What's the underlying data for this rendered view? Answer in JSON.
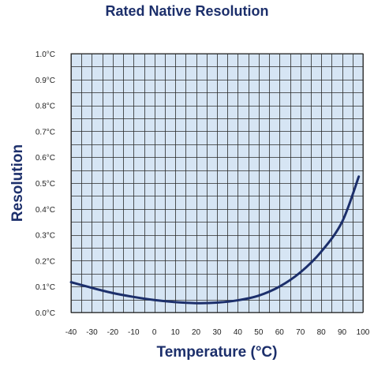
{
  "chart_data": {
    "type": "line",
    "title": "Rated Native Resolution",
    "xlabel": "Temperature (°C)",
    "ylabel": "Resolution",
    "xlim": [
      -40,
      100
    ],
    "ylim": [
      0.0,
      1.0
    ],
    "x_ticks": [
      "-40",
      "-30",
      "-20",
      "-10",
      "0",
      "10",
      "20",
      "30",
      "40",
      "50",
      "60",
      "70",
      "80",
      "90",
      "100"
    ],
    "y_ticks": [
      "0.0°C",
      "0.1°C",
      "0.2°C",
      "0.3°C",
      "0.4°C",
      "0.5°C",
      "0.6°C",
      "0.7°C",
      "0.8°C",
      "0.9°C",
      "1.0°C"
    ],
    "grid": true,
    "colors": {
      "plot_background": "#d6e5f4",
      "grid": "#2a2a2a",
      "line": "#1c2f6b",
      "text": "#1c2f6b"
    },
    "series": [
      {
        "x": [
          -40,
          -30,
          -20,
          -10,
          0,
          10,
          20,
          30,
          40,
          50,
          60,
          70,
          80,
          90,
          98
        ],
        "y": [
          0.117,
          0.095,
          0.075,
          0.06,
          0.048,
          0.04,
          0.036,
          0.038,
          0.047,
          0.065,
          0.1,
          0.155,
          0.235,
          0.35,
          0.525
        ]
      }
    ]
  }
}
